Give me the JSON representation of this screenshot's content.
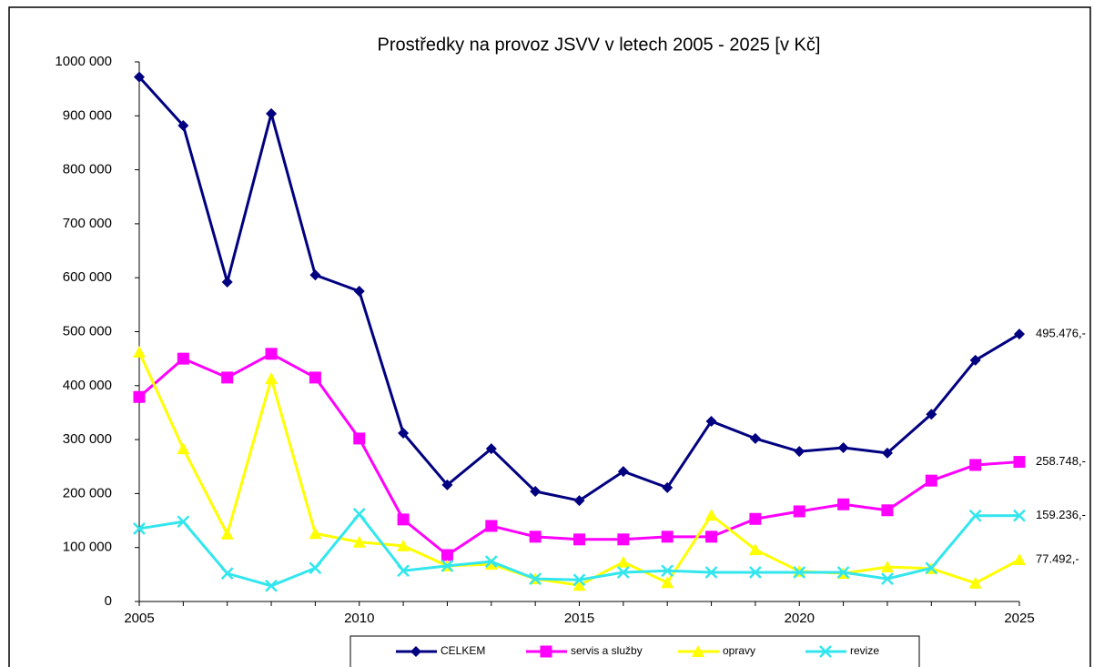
{
  "chart_data": {
    "type": "line",
    "title": "Prostředky na provoz JSVV v letech 2005 - 2025 [v Kč]",
    "x": [
      2005,
      2006,
      2007,
      2008,
      2009,
      2010,
      2011,
      2012,
      2013,
      2014,
      2015,
      2016,
      2017,
      2018,
      2019,
      2020,
      2021,
      2022,
      2023,
      2024,
      2025
    ],
    "xlim": [
      2005,
      2025
    ],
    "xticks": [
      2005,
      2010,
      2015,
      2020,
      2025
    ],
    "ylim": [
      0,
      1000000
    ],
    "yticks": [
      0,
      {
        "value": 100000,
        "label": "100 000"
      },
      {
        "value": 200000,
        "label": "200 000"
      },
      {
        "value": 300000,
        "label": "300 000"
      },
      {
        "value": 400000,
        "label": "400 000"
      },
      {
        "value": 500000,
        "label": "500 000"
      },
      {
        "value": 600000,
        "label": "600 000"
      },
      {
        "value": 700000,
        "label": "700 000"
      },
      {
        "value": 800000,
        "label": "800 000"
      },
      {
        "value": 900000,
        "label": "900 000"
      },
      {
        "value": 1000000,
        "label": "1000 000"
      }
    ],
    "grid": false,
    "legend": "bottom",
    "series": [
      {
        "name": "CELKEM",
        "color": "#000080",
        "marker": "diamond",
        "values": [
          972000,
          882000,
          592000,
          904000,
          605000,
          575000,
          312000,
          216000,
          283000,
          204000,
          187000,
          241000,
          211000,
          334000,
          302000,
          278000,
          285000,
          275000,
          347000,
          447000,
          495476
        ],
        "value_labels": [
          null,
          null,
          null,
          null,
          null,
          null,
          null,
          null,
          null,
          null,
          null,
          null,
          null,
          null,
          null,
          null,
          null,
          null,
          null,
          null,
          "495.476,-"
        ]
      },
      {
        "name": "servis a služby",
        "color": "#FF00FF",
        "marker": "square",
        "values": [
          379000,
          450000,
          415000,
          459000,
          415000,
          302000,
          152000,
          86000,
          140000,
          120000,
          115000,
          115000,
          120000,
          120000,
          153000,
          167000,
          180000,
          169000,
          224000,
          253000,
          258748
        ],
        "value_labels": [
          null,
          null,
          null,
          null,
          null,
          null,
          null,
          null,
          null,
          null,
          null,
          null,
          null,
          null,
          null,
          null,
          null,
          null,
          null,
          null,
          "258.748,-"
        ]
      },
      {
        "name": "opravy",
        "color": "#FFFF00",
        "marker": "triangle",
        "values": [
          462000,
          283000,
          125000,
          413000,
          126000,
          110000,
          103000,
          66000,
          69000,
          42000,
          30000,
          73000,
          35000,
          160000,
          96000,
          56000,
          52000,
          64000,
          61000,
          34000,
          77492
        ],
        "value_labels": [
          null,
          null,
          null,
          null,
          null,
          null,
          null,
          null,
          null,
          null,
          null,
          null,
          null,
          null,
          null,
          null,
          null,
          null,
          null,
          null,
          "77.492,-"
        ]
      },
      {
        "name": "revize",
        "color": "#33E6EE",
        "marker": "x",
        "values": [
          135000,
          148000,
          52000,
          29000,
          62000,
          162000,
          57000,
          66000,
          74000,
          42000,
          40000,
          54000,
          57000,
          54000,
          54000,
          54000,
          54000,
          42000,
          62000,
          159000,
          159236
        ],
        "value_labels": [
          null,
          null,
          null,
          null,
          null,
          null,
          null,
          null,
          null,
          null,
          null,
          null,
          null,
          null,
          null,
          null,
          null,
          null,
          null,
          null,
          "159.236,-"
        ]
      }
    ]
  }
}
